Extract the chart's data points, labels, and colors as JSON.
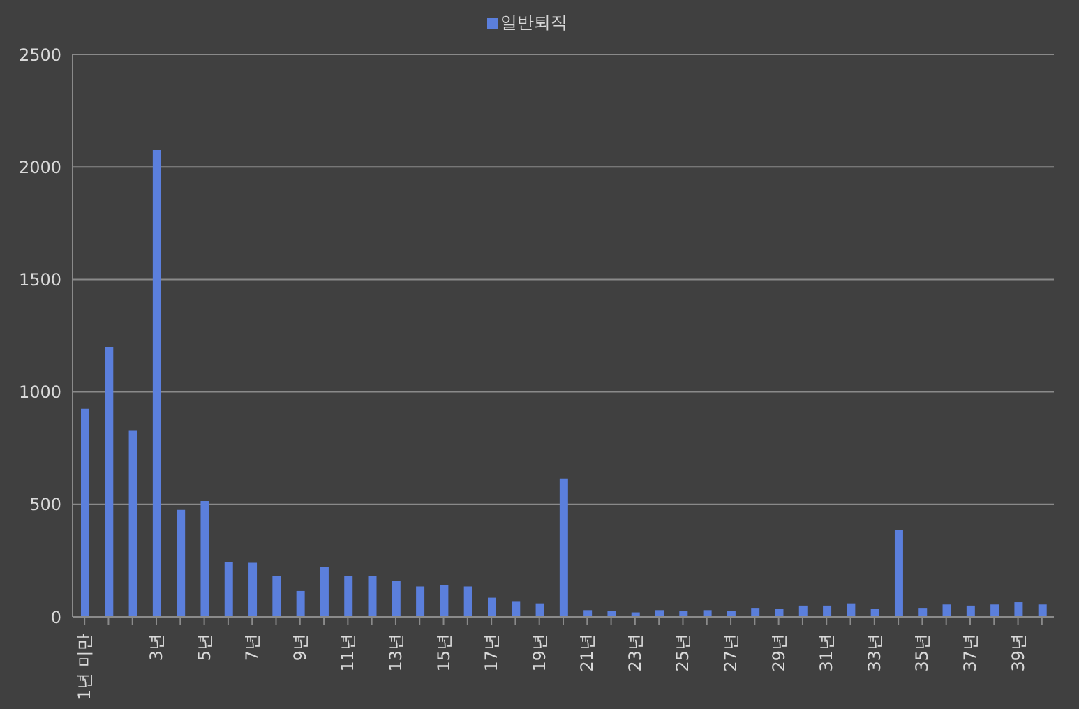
{
  "chart_data": {
    "type": "bar",
    "categories": [
      "1년 미만",
      null,
      null,
      "3년",
      null,
      "5년",
      null,
      "7년",
      null,
      "9년",
      null,
      "11년",
      null,
      "13년",
      null,
      "15년",
      null,
      "17년",
      null,
      "19년",
      null,
      "21년",
      null,
      "23년",
      null,
      "25년",
      null,
      "27년",
      null,
      "29년",
      null,
      "31년",
      null,
      "33년",
      null,
      "35년",
      null,
      "37년",
      null,
      "39년",
      null
    ],
    "series": [
      {
        "name": "일반퇴직",
        "color": "#5b7fdc",
        "values": [
          925,
          1200,
          830,
          2075,
          475,
          515,
          245,
          240,
          180,
          115,
          220,
          180,
          180,
          160,
          135,
          140,
          135,
          85,
          70,
          60,
          615,
          30,
          25,
          20,
          30,
          25,
          30,
          25,
          40,
          35,
          50,
          50,
          60,
          35,
          385,
          40,
          55,
          50,
          55,
          65,
          55
        ]
      }
    ],
    "ylim": [
      0,
      2500
    ],
    "yticks": [
      0,
      500,
      1000,
      1500,
      2000,
      2500
    ],
    "grid": "y",
    "legend": "top"
  }
}
